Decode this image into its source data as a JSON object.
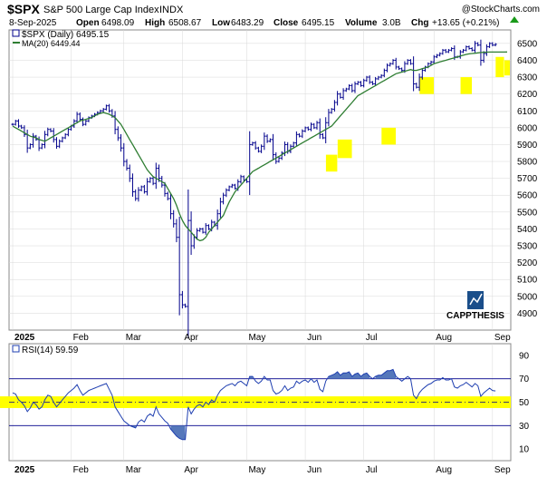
{
  "header": {
    "symbol": "$SPX",
    "name": "S&P 500 Large Cap Index",
    "exchange": "INDX",
    "source": "@StockCharts.com",
    "date": "8-Sep-2025",
    "open_label": "Open",
    "open": "6498.09",
    "high_label": "High",
    "high": "6508.67",
    "low_label": "Low",
    "low": "6483.29",
    "close_label": "Close",
    "close": "6495.15",
    "volume_label": "Volume",
    "volume": "3.0B",
    "chg_label": "Chg",
    "chg": "+13.65 (+0.21%)"
  },
  "legend": {
    "price": "$SPX (Daily) 6495.15",
    "ma": "MA(20) 6449.44",
    "rsi": "RSI(14) 59.59"
  },
  "watermark": {
    "text": "CAPPTHESIS"
  },
  "colors": {
    "price_bar": "#00008b",
    "ma_line": "#2e7d32",
    "rsi_line": "#1f3fb0",
    "rsi_fill": "#5577bb",
    "highlight": "#ffff00",
    "grid": "#d8d8d8",
    "logo": "#1a4e8a"
  },
  "chart_data": [
    {
      "type": "ohlc",
      "title": "$SPX (Daily)",
      "y_ticks": [
        4900,
        5000,
        5100,
        5200,
        5300,
        5400,
        5500,
        5600,
        5700,
        5800,
        5900,
        6000,
        6100,
        6200,
        6300,
        6400,
        6500
      ],
      "ylim": [
        4800,
        6580
      ],
      "x_month_labels": [
        "2025",
        "Feb",
        "Mar",
        "Apr",
        "May",
        "Jun",
        "Jul",
        "Aug",
        "Sep"
      ],
      "x_month_label_day_index": [
        0,
        20,
        38,
        58,
        80,
        100,
        120,
        144,
        164
      ],
      "num_days": 170,
      "close": [
        6020,
        6040,
        6010,
        6000,
        5960,
        5880,
        5900,
        5950,
        5930,
        5880,
        5900,
        5960,
        5990,
        5980,
        5930,
        5890,
        5920,
        5940,
        5960,
        5990,
        6010,
        6040,
        6080,
        6050,
        6020,
        6040,
        6060,
        6070,
        6080,
        6090,
        6100,
        6110,
        6130,
        6100,
        6070,
        5990,
        5940,
        5880,
        5800,
        5760,
        5700,
        5620,
        5580,
        5630,
        5650,
        5620,
        5680,
        5700,
        5670,
        5760,
        5700,
        5660,
        5610,
        5580,
        5490,
        5430,
        5350,
        5010,
        4950,
        4940,
        5450,
        5300,
        5350,
        5390,
        5400,
        5380,
        5420,
        5400,
        5440,
        5420,
        5490,
        5560,
        5600,
        5630,
        5650,
        5660,
        5640,
        5680,
        5710,
        5690,
        5680,
        5900,
        5910,
        5880,
        5860,
        5890,
        5950,
        5920,
        5930,
        5840,
        5800,
        5820,
        5850,
        5900,
        5860,
        5890,
        5910,
        5960,
        5950,
        5980,
        6000,
        5990,
        6020,
        6000,
        6030,
        5960,
        5940,
        6030,
        6090,
        6110,
        6150,
        6200,
        6180,
        6220,
        6230,
        6250,
        6220,
        6260,
        6270,
        6250,
        6280,
        6300,
        6270,
        6260,
        6290,
        6300,
        6310,
        6340,
        6370,
        6380,
        6400,
        6360,
        6350,
        6340,
        6380,
        6400,
        6380,
        6260,
        6240,
        6300,
        6340,
        6360,
        6380,
        6390,
        6420,
        6430,
        6440,
        6460,
        6450,
        6460,
        6470,
        6420,
        6420,
        6450,
        6460,
        6480,
        6470,
        6460,
        6500,
        6490,
        6400,
        6440,
        6480,
        6500,
        6490,
        6495
      ],
      "ma20": [
        6010,
        6000,
        5990,
        5980,
        5970,
        5960,
        5950,
        5945,
        5940,
        5930,
        5925,
        5920,
        5930,
        5940,
        5950,
        5960,
        5970,
        5980,
        5990,
        6000,
        6010,
        6020,
        6030,
        6040,
        6045,
        6050,
        6055,
        6060,
        6070,
        6080,
        6085,
        6090,
        6085,
        6080,
        6070,
        6060,
        6040,
        6020,
        5990,
        5960,
        5930,
        5900,
        5870,
        5840,
        5810,
        5780,
        5750,
        5730,
        5710,
        5700,
        5690,
        5680,
        5670,
        5640,
        5610,
        5580,
        5540,
        5490,
        5450,
        5420,
        5400,
        5380,
        5360,
        5340,
        5330,
        5335,
        5350,
        5380,
        5400,
        5420,
        5440,
        5460,
        5480,
        5520,
        5560,
        5590,
        5620,
        5640,
        5660,
        5680,
        5700,
        5720,
        5740,
        5750,
        5760,
        5770,
        5780,
        5790,
        5800,
        5810,
        5820,
        5830,
        5840,
        5850,
        5860,
        5870,
        5880,
        5890,
        5900,
        5910,
        5920,
        5930,
        5940,
        5950,
        5960,
        5970,
        5980,
        5990,
        6000,
        6010,
        6030,
        6050,
        6070,
        6090,
        6110,
        6130,
        6150,
        6170,
        6190,
        6200,
        6210,
        6220,
        6230,
        6240,
        6250,
        6260,
        6270,
        6280,
        6290,
        6300,
        6310,
        6320,
        6325,
        6330,
        6335,
        6340,
        6345,
        6340,
        6340,
        6345,
        6350,
        6355,
        6360,
        6370,
        6380,
        6385,
        6390,
        6395,
        6400,
        6405,
        6410,
        6415,
        6420,
        6425,
        6430,
        6435,
        6438,
        6440,
        6442,
        6444,
        6446,
        6447,
        6448,
        6449,
        6449,
        6449,
        6449,
        6449,
        6449,
        6449.44
      ],
      "highlights": [
        {
          "day_from": 108,
          "day_to": 110,
          "low": 5740,
          "high": 5840
        },
        {
          "day_from": 112,
          "day_to": 115,
          "low": 5820,
          "high": 5930
        },
        {
          "day_from": 127,
          "day_to": 130,
          "low": 5900,
          "high": 6000
        },
        {
          "day_from": 140,
          "day_to": 143,
          "low": 6200,
          "high": 6300
        },
        {
          "day_from": 154,
          "day_to": 156,
          "low": 6200,
          "high": 6300
        },
        {
          "day_from": 166,
          "day_to": 167,
          "low": 6300,
          "high": 6420
        },
        {
          "day_from": 174,
          "day_to": 175,
          "low": 6310,
          "high": 6400
        }
      ]
    },
    {
      "type": "line",
      "title": "RSI(14)",
      "y_ticks": [
        10,
        30,
        50,
        70,
        90
      ],
      "ylim": [
        0,
        100
      ],
      "reference_lines": [
        30,
        50,
        70
      ],
      "highlight_band": [
        45,
        55
      ],
      "values": [
        58,
        57,
        52,
        50,
        47,
        42,
        45,
        50,
        48,
        44,
        46,
        52,
        56,
        55,
        50,
        46,
        49,
        52,
        55,
        58,
        60,
        62,
        65,
        60,
        56,
        58,
        60,
        61,
        62,
        63,
        64,
        65,
        66,
        61,
        56,
        46,
        42,
        38,
        34,
        32,
        30,
        29,
        28,
        33,
        35,
        33,
        38,
        40,
        38,
        46,
        40,
        37,
        34,
        32,
        27,
        24,
        21,
        19,
        18,
        18,
        46,
        40,
        44,
        47,
        48,
        46,
        50,
        48,
        52,
        50,
        56,
        60,
        62,
        64,
        65,
        66,
        64,
        67,
        68,
        66,
        64,
        72,
        72,
        68,
        66,
        68,
        72,
        69,
        69,
        60,
        57,
        58,
        60,
        64,
        60,
        62,
        63,
        68,
        66,
        68,
        69,
        67,
        70,
        67,
        69,
        61,
        59,
        68,
        72,
        73,
        74,
        76,
        73,
        75,
        75,
        76,
        72,
        74,
        75,
        72,
        74,
        75,
        72,
        70,
        72,
        73,
        73,
        75,
        77,
        77,
        78,
        72,
        70,
        68,
        70,
        72,
        70,
        56,
        53,
        58,
        61,
        63,
        65,
        66,
        68,
        69,
        69,
        71,
        69,
        69,
        70,
        63,
        62,
        64,
        65,
        67,
        65,
        63,
        66,
        64,
        55,
        58,
        60,
        62,
        60,
        59.59
      ],
      "x_month_labels": [
        "2025",
        "Feb",
        "Mar",
        "Apr",
        "May",
        "Jun",
        "Jul",
        "Aug",
        "Sep"
      ]
    }
  ]
}
